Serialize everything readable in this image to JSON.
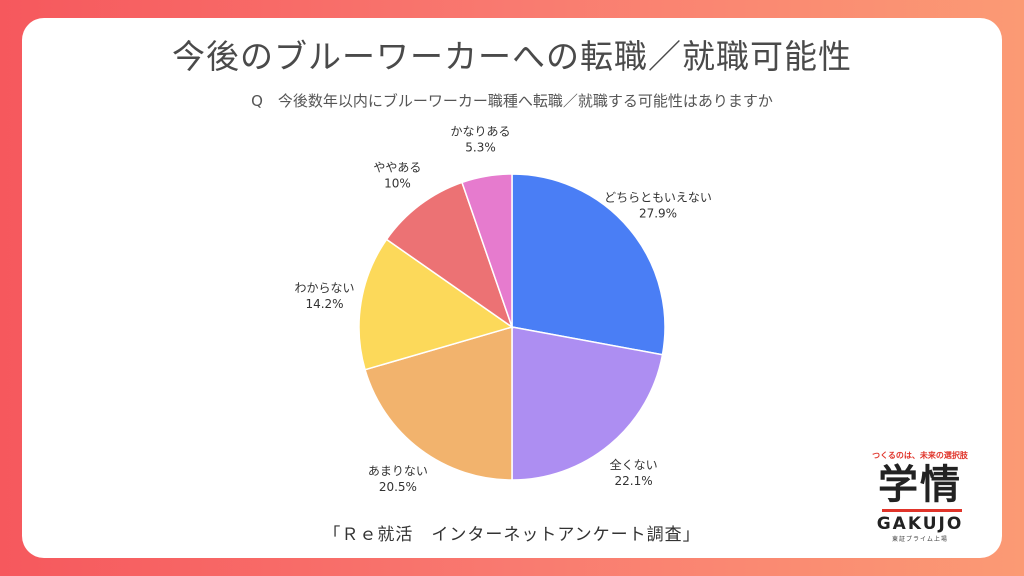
{
  "header": {
    "title": "今後のブルーワーカーへの転職／就職可能性",
    "subtitle": "Q　今後数年以内にブルーワーカー職種へ転職／就職する可能性はありますか"
  },
  "footer": {
    "source": "「Ｒｅ就活　インターネットアンケート調査」"
  },
  "logo": {
    "tagline": "つくるのは、未来の選択肢",
    "kanji": "学情",
    "name": "GAKUJO",
    "sub": "東証プライム上場",
    "accent": "#e0342a"
  },
  "chart_data": {
    "type": "pie",
    "title": "",
    "unit": "%",
    "slices": [
      {
        "label": "どちらともいえない",
        "value": 27.9,
        "value_label": "27.9%",
        "color": "#4a7ef5"
      },
      {
        "label": "全くない",
        "value": 22.1,
        "value_label": "22.1%",
        "color": "#ad8ef2"
      },
      {
        "label": "あまりない",
        "value": 20.5,
        "value_label": "20.5%",
        "color": "#f2b36d"
      },
      {
        "label": "わからない",
        "value": 14.2,
        "value_label": "14.2%",
        "color": "#fcd95a"
      },
      {
        "label": "ややある",
        "value": 10,
        "value_label": "10%",
        "color": "#ec7274"
      },
      {
        "label": "かなりある",
        "value": 5.3,
        "value_label": "5.3%",
        "color": "#e67bce"
      }
    ]
  }
}
